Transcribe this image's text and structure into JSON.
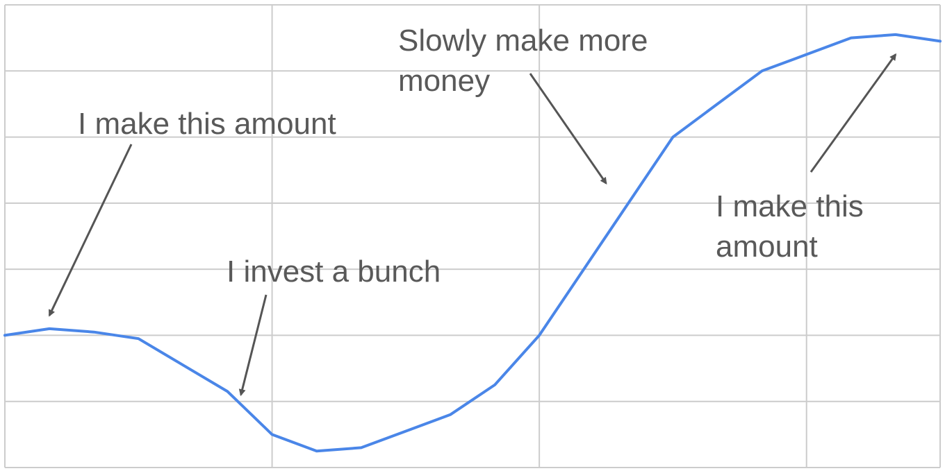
{
  "chart_data": {
    "type": "line",
    "title": "",
    "xlabel": "",
    "ylabel": "",
    "x": [
      0,
      1,
      2,
      3,
      4,
      5,
      6,
      7,
      8,
      9,
      10,
      11,
      12,
      13,
      14,
      15,
      16,
      17,
      18,
      19,
      20,
      21
    ],
    "xlim": [
      0,
      21
    ],
    "ylim": [
      0,
      7
    ],
    "x_grid_lines": [
      6,
      12,
      18
    ],
    "y_grid_lines": [
      1,
      2,
      3,
      4,
      5,
      6,
      7
    ],
    "grid": true,
    "legend": "none",
    "series": [
      {
        "color": "#4a86e8",
        "values": [
          2.0,
          2.1,
          2.05,
          1.95,
          1.55,
          1.15,
          0.5,
          0.25,
          0.3,
          0.55,
          0.8,
          1.25,
          2.0,
          3.0,
          4.0,
          5.0,
          5.5,
          6.0,
          6.25,
          6.5,
          6.55,
          6.45
        ]
      }
    ],
    "annotations": [
      {
        "id": "start",
        "lines": [
          "I make this amount"
        ],
        "arrow_to": [
          1,
          2.3
        ]
      },
      {
        "id": "invest",
        "lines": [
          "I invest a bunch"
        ],
        "arrow_to": [
          5.3,
          1.1
        ]
      },
      {
        "id": "slowly",
        "lines": [
          "Slowly make more",
          "money"
        ],
        "arrow_to": [
          13.5,
          4.3
        ]
      },
      {
        "id": "end",
        "lines": [
          "I make this",
          "amount"
        ],
        "arrow_to": [
          20,
          6.25
        ]
      }
    ],
    "colors": {
      "arrow": "#555555",
      "grid": "#cccccc"
    }
  }
}
